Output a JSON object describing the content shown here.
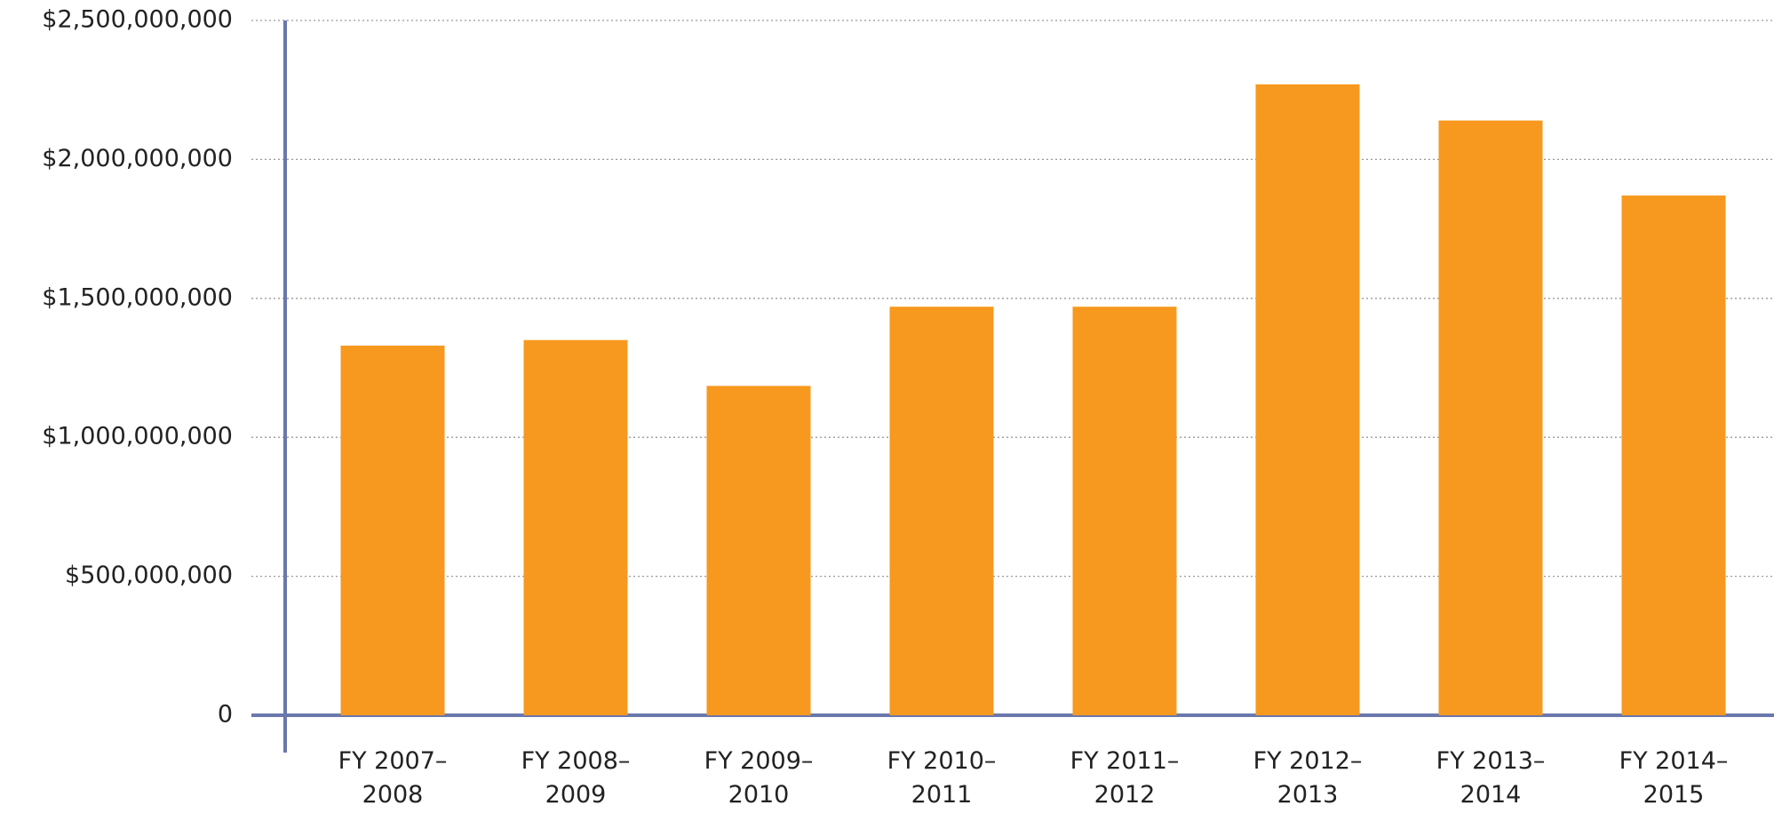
{
  "chart_data": {
    "type": "bar",
    "categories": [
      "FY 2007–2008",
      "FY 2008–2009",
      "FY 2009–2010",
      "FY 2010–2011",
      "FY 2011–2012",
      "FY 2012–2013",
      "FY 2013–2014",
      "FY 2014–2015"
    ],
    "values": [
      1330000000,
      1350000000,
      1185000000,
      1470000000,
      1470000000,
      2270000000,
      2140000000,
      1870000000
    ],
    "color": "#f7991f",
    "ylim": [
      0,
      2500000000
    ],
    "yticks": [
      0,
      {
        "value": 500000000,
        "label": "$500,000,000"
      },
      {
        "value": 1000000000,
        "label": "$1,000,000,000"
      },
      {
        "value": 1500000000,
        "label": "$1,500,000,000"
      },
      {
        "value": 2000000000,
        "label": "$2,000,000,000"
      },
      {
        "value": 2500000000,
        "label": "$2,500,000,000"
      }
    ],
    "grid": true
  }
}
